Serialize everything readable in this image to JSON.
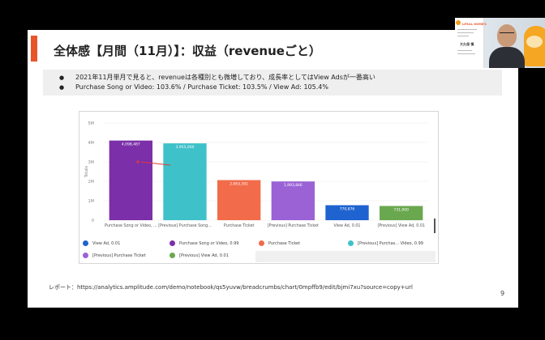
{
  "slide": {
    "title": "全体感【月間（11月）】：収益（revenueごと）",
    "bullets": [
      "2021年11月単月で見ると、revenueは各種別とも微増しており、成長率としてはView Adsが一番高い",
      "Purchase Song or Video: 103.6% / Purchase Ticket: 103.5% / View Ad: 105.4%"
    ],
    "report_link": "レポート：https://analytics.amplitude.com/demo/notebook/qs5yuvw/breadcrumbs/chart/0mpffb9/edit/bjmi7xu?source=copy+url",
    "page_number": "9"
  },
  "chart_data": {
    "type": "bar",
    "ylabel": "Totals",
    "ylim": [
      0,
      5000000
    ],
    "y_ticks": [
      "0",
      "1M",
      "2M",
      "3M",
      "4M",
      "5M"
    ],
    "categories": [
      "Purchase Song or Video, ...",
      "[Previous] Purchase Song...",
      "Purchase Ticket",
      "[Previous] Purchase Ticket",
      "View Ad, 0.01",
      "[Previous] View Ad, 0.01"
    ],
    "values": [
      4098487,
      3955000,
      2063301,
      1993846,
      770876,
      731900
    ],
    "value_labels": [
      "4,098,487",
      "3,955,000",
      "2,063,301",
      "1,993,846",
      "770,876",
      "731,900"
    ],
    "colors": [
      "#7b2fa8",
      "#3fc1c9",
      "#f26b4a",
      "#9b62d6",
      "#1e63d0",
      "#6aa84f"
    ],
    "legend": [
      {
        "label": "View Ad, 0.01",
        "color": "#1e63d0",
        "letter": "A"
      },
      {
        "label": "Purchase Song or Video, 0.99",
        "color": "#7b2fa8",
        "letter": "B"
      },
      {
        "label": "Purchase Ticket",
        "color": "#f26b4a",
        "letter": "C"
      },
      {
        "label": "[Previous] Purchas... Video, 0.99",
        "color": "#3fc1c9",
        "letter": "D"
      },
      {
        "label": "[Previous] Purchase Ticket",
        "color": "#9b62d6",
        "letter": "E"
      },
      {
        "label": "[Previous] View Ad, 0.01",
        "color": "#6aa84f",
        "letter": "F"
      }
    ],
    "legend_position": "bottom"
  },
  "presenter": {
    "brand": "LIFULL HOME'S",
    "name": "大久保 慎"
  }
}
